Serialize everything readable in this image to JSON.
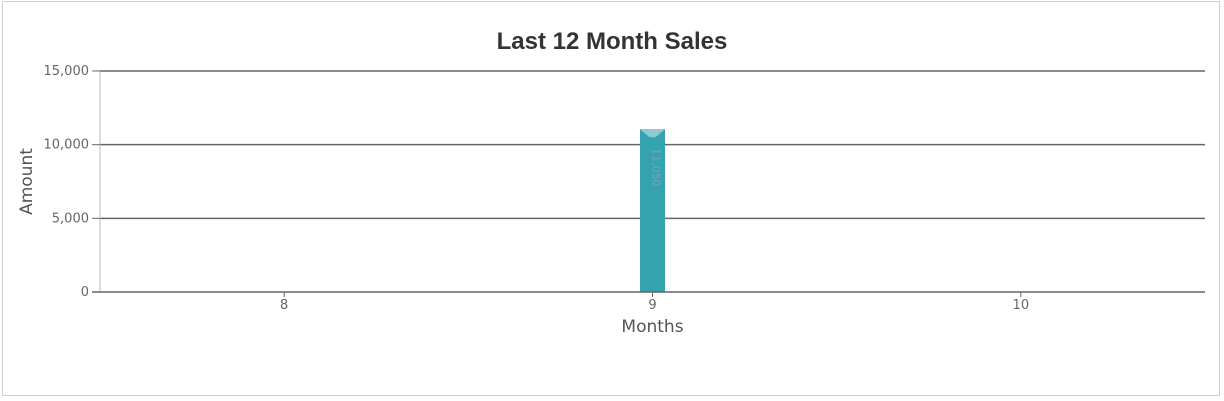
{
  "chart_data": {
    "type": "bar",
    "title": "Last 12 Month Sales",
    "xlabel": "Months",
    "ylabel": "Amount",
    "categories": [
      "8",
      "9",
      "10"
    ],
    "series": [
      {
        "values": [
          0,
          11050,
          0
        ]
      }
    ],
    "data_labels": [
      "",
      "11,050",
      ""
    ],
    "ylim": [
      0,
      15000
    ],
    "yticks": [
      0,
      5000,
      10000,
      15000
    ],
    "ytick_labels": [
      "0",
      "5,000",
      "10,000",
      "15,000"
    ],
    "grid": true,
    "legend": "none",
    "colors": {
      "bar": "#35a2b0",
      "bar_cap": "#8fcad1",
      "grid": "#666666",
      "axis": "#666666"
    }
  }
}
